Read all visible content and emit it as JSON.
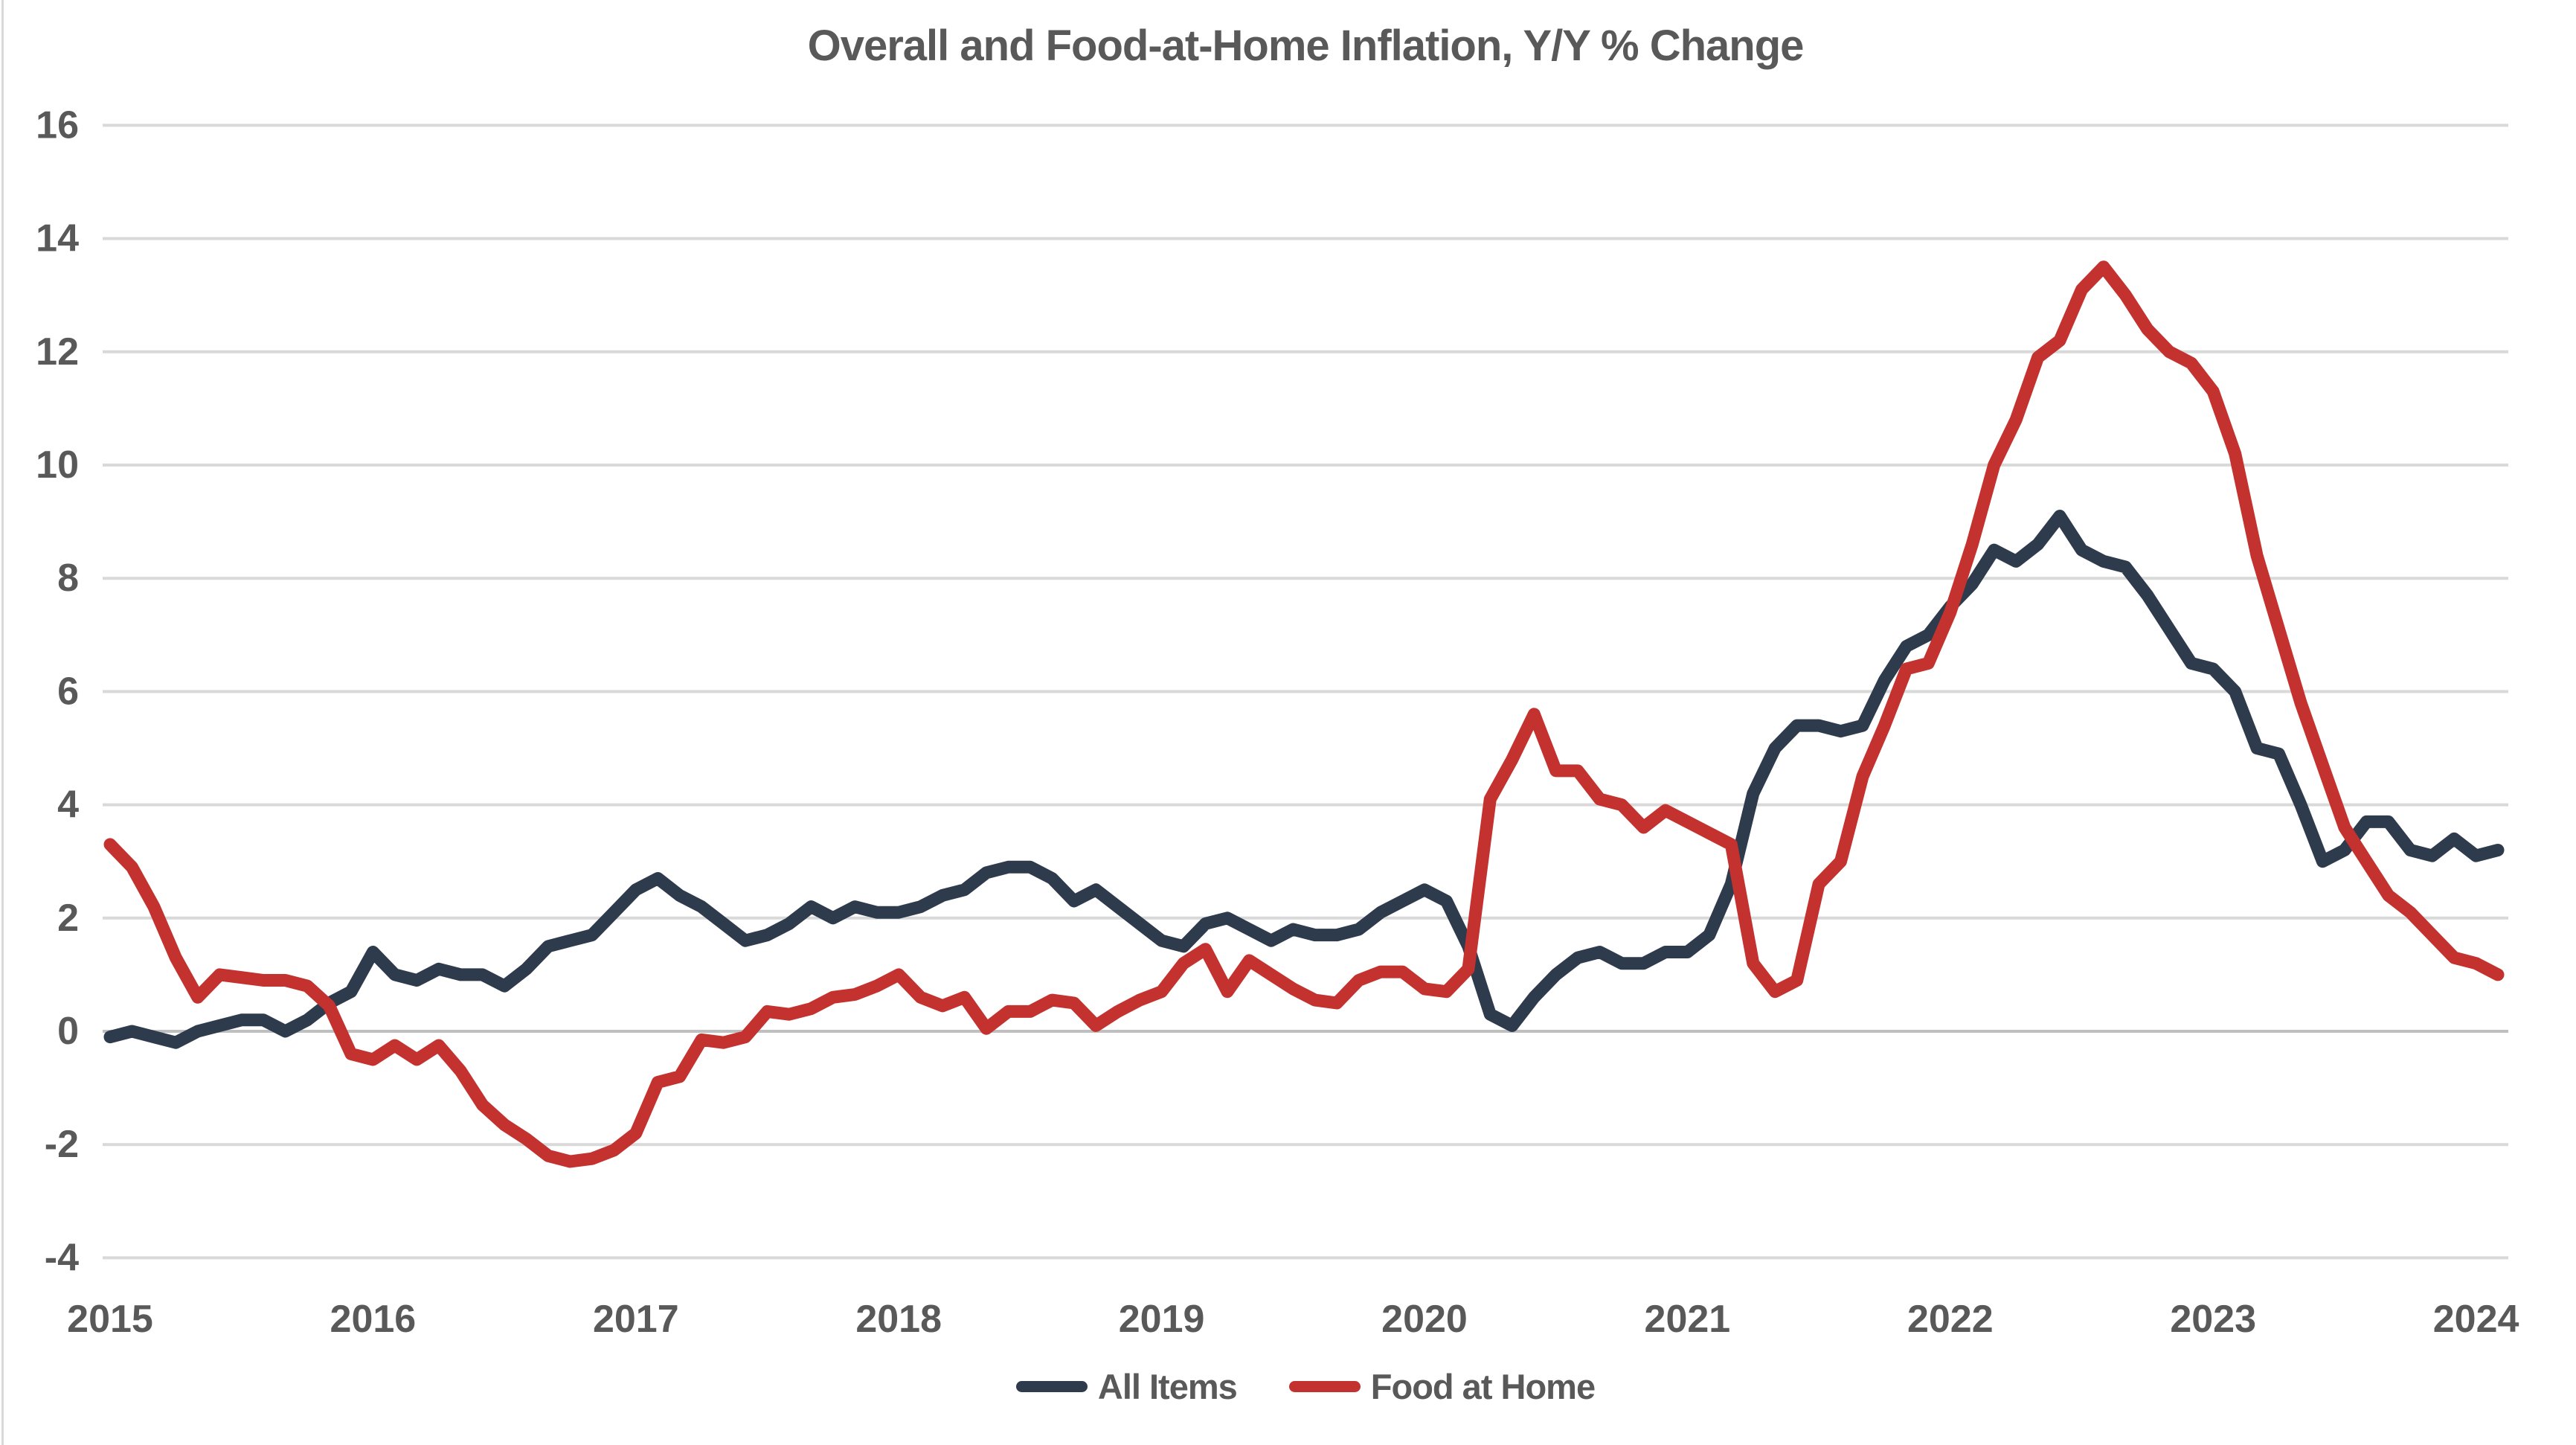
{
  "title": "Overall and Food-at-Home Inflation, Y/Y % Change",
  "legend": {
    "items": [
      {
        "label": "All Items",
        "color": "#2e3b4d"
      },
      {
        "label": "Food at Home",
        "color": "#c3322e"
      }
    ]
  },
  "colors": {
    "all_items_line": "#2e3b4d",
    "food_at_home_line": "#c3322e",
    "axis_text": "#595959",
    "gridline": "#d9d9d9",
    "zero_line": "#bfbfbf"
  },
  "chart_data": {
    "type": "line",
    "title": "Overall and Food-at-Home Inflation, Y/Y % Change",
    "x_start": "2015-01",
    "frequency": "monthly",
    "x_tick_labels": [
      "2015",
      "2016",
      "2017",
      "2018",
      "2019",
      "2020",
      "2021",
      "2022",
      "2023",
      "2024"
    ],
    "y_tick_labels": [
      "-4",
      "-2",
      "0",
      "2",
      "4",
      "6",
      "8",
      "10",
      "12",
      "14",
      "16"
    ],
    "y_ticks": [
      -4,
      -2,
      0,
      2,
      4,
      6,
      8,
      10,
      12,
      14,
      16
    ],
    "ylim": [
      -4,
      16
    ],
    "grid": true,
    "legend_position": "bottom",
    "series": [
      {
        "name": "All Items",
        "values": [
          -0.1,
          0.0,
          -0.1,
          -0.2,
          0.0,
          0.1,
          0.2,
          0.2,
          0.0,
          0.2,
          0.5,
          0.7,
          1.4,
          1.0,
          0.9,
          1.1,
          1.0,
          1.0,
          0.8,
          1.1,
          1.5,
          1.6,
          1.7,
          2.1,
          2.5,
          2.7,
          2.4,
          2.2,
          1.9,
          1.6,
          1.7,
          1.9,
          2.2,
          2.0,
          2.2,
          2.1,
          2.1,
          2.2,
          2.4,
          2.5,
          2.8,
          2.9,
          2.9,
          2.7,
          2.3,
          2.5,
          2.2,
          1.9,
          1.6,
          1.5,
          1.9,
          2.0,
          1.8,
          1.6,
          1.8,
          1.7,
          1.7,
          1.8,
          2.1,
          2.3,
          2.5,
          2.3,
          1.5,
          0.3,
          0.1,
          0.6,
          1.0,
          1.3,
          1.4,
          1.2,
          1.2,
          1.4,
          1.4,
          1.7,
          2.6,
          4.2,
          5.0,
          5.4,
          5.4,
          5.3,
          5.4,
          6.2,
          6.8,
          7.0,
          7.5,
          7.9,
          8.5,
          8.3,
          8.6,
          9.1,
          8.5,
          8.3,
          8.2,
          7.7,
          7.1,
          6.5,
          6.4,
          6.0,
          5.0,
          4.9,
          4.0,
          3.0,
          3.2,
          3.7,
          3.7,
          3.2,
          3.1,
          3.4,
          3.1,
          3.2
        ]
      },
      {
        "name": "Food at Home",
        "values": [
          3.3,
          2.9,
          2.2,
          1.3,
          0.6,
          1.0,
          0.95,
          0.9,
          0.9,
          0.8,
          0.45,
          -0.4,
          -0.5,
          -0.25,
          -0.5,
          -0.25,
          -0.7,
          -1.3,
          -1.65,
          -1.9,
          -2.2,
          -2.3,
          -2.25,
          -2.1,
          -1.8,
          -0.9,
          -0.8,
          -0.15,
          -0.2,
          -0.1,
          0.35,
          0.3,
          0.4,
          0.6,
          0.65,
          0.8,
          1.0,
          0.6,
          0.45,
          0.6,
          0.05,
          0.35,
          0.35,
          0.55,
          0.5,
          0.1,
          0.35,
          0.55,
          0.7,
          1.2,
          1.45,
          0.7,
          1.25,
          1.0,
          0.75,
          0.55,
          0.5,
          0.9,
          1.05,
          1.05,
          0.75,
          0.7,
          1.1,
          4.1,
          4.8,
          5.6,
          4.6,
          4.6,
          4.1,
          4.0,
          3.6,
          3.9,
          3.7,
          3.5,
          3.3,
          1.2,
          0.7,
          0.9,
          2.6,
          3.0,
          4.5,
          5.4,
          6.4,
          6.5,
          7.4,
          8.6,
          10.0,
          10.8,
          11.9,
          12.2,
          13.1,
          13.5,
          13.0,
          12.4,
          12.0,
          11.8,
          11.3,
          10.2,
          8.4,
          7.1,
          5.8,
          4.7,
          3.6,
          3.0,
          2.4,
          2.1,
          1.7,
          1.3,
          1.2,
          1.0
        ]
      }
    ]
  }
}
